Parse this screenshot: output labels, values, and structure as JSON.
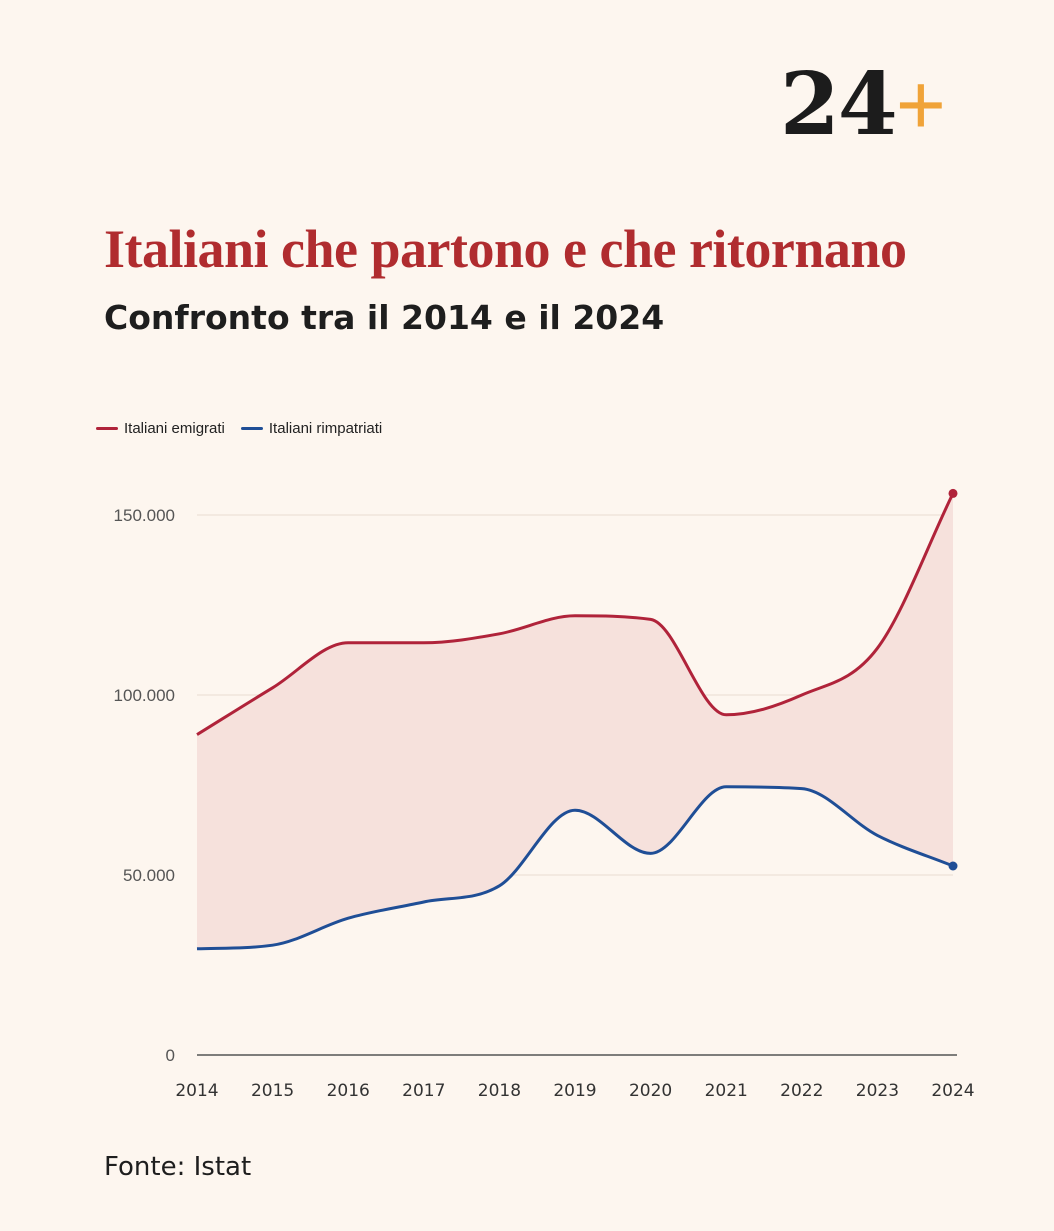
{
  "logo": {
    "number": "24",
    "plus": "+"
  },
  "header": {
    "title": "Italiani che partono e che ritornano",
    "subtitle": "Confronto tra il 2014 e il 2024"
  },
  "source": "Fonte: Istat",
  "colors": {
    "emigrati": "#b0233a",
    "rimpatriati": "#1f4e96",
    "fill": "#f6e1dc",
    "logo_plus": "#f0a338",
    "title": "#b02c2f"
  },
  "chart_data": {
    "type": "line",
    "categories": [
      "2014",
      "2015",
      "2016",
      "2017",
      "2018",
      "2019",
      "2020",
      "2021",
      "2022",
      "2023",
      "2024"
    ],
    "series": [
      {
        "name": "Italiani emigrati",
        "values": [
          89000,
          102000,
          114500,
          114500,
          117000,
          122000,
          121000,
          94500,
          100000,
          113000,
          156000
        ]
      },
      {
        "name": "Italiani rimpatriati",
        "values": [
          29500,
          30500,
          38000,
          42500,
          47000,
          68000,
          56000,
          74500,
          74000,
          61000,
          52500
        ]
      }
    ],
    "area_between_series": true,
    "ylim": [
      0,
      160000
    ],
    "yticks": [
      0,
      50000,
      100000,
      150000
    ],
    "ytick_labels": [
      "0",
      "50.000",
      "100.000",
      "150.000"
    ],
    "grid": true,
    "legend_position": "top-left",
    "xlabel": "",
    "ylabel": ""
  }
}
